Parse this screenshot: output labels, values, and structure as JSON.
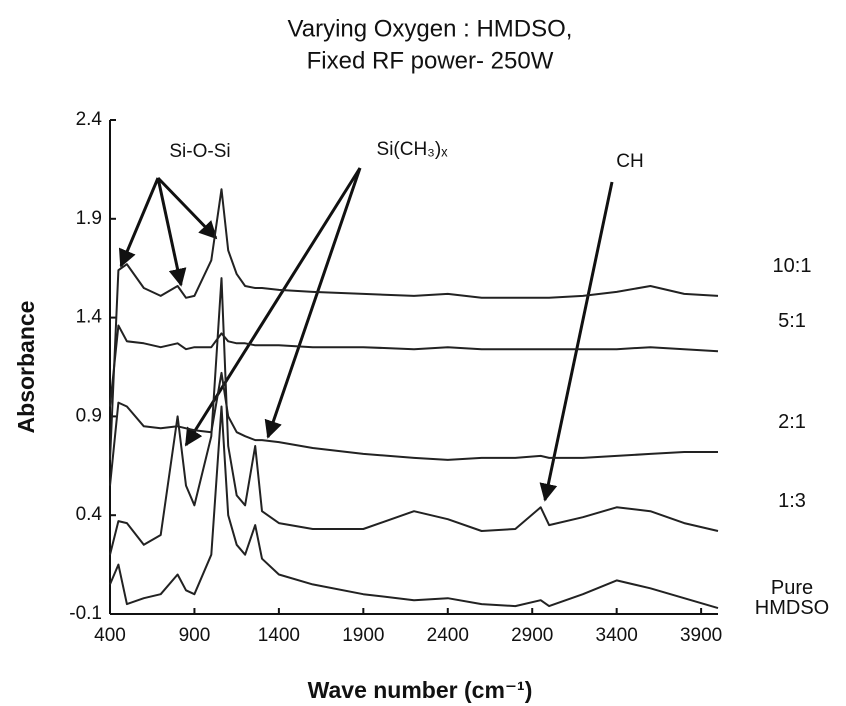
{
  "chart_data": {
    "type": "line",
    "title": "Varying Oxygen : HMDSO,",
    "subtitle": "Fixed RF power- 250W",
    "x_label": "Wave number (cm⁻¹)",
    "y_label": "Absorbance",
    "annotations": [
      "Si-O-Si",
      "Si(CH₃)ₓ",
      "CH"
    ],
    "x": [
      400,
      450,
      500,
      600,
      700,
      800,
      850,
      900,
      1000,
      1060,
      1100,
      1150,
      1200,
      1260,
      1300,
      1400,
      1600,
      1900,
      2200,
      2400,
      2600,
      2800,
      2950,
      3000,
      3200,
      3400,
      3600,
      3800,
      4000
    ],
    "series": [
      {
        "name": "10:1",
        "color": "#222222",
        "values": [
          0.68,
          1.64,
          1.67,
          1.55,
          1.51,
          1.56,
          1.5,
          1.51,
          1.69,
          2.05,
          1.74,
          1.62,
          1.56,
          1.55,
          1.55,
          1.54,
          1.53,
          1.52,
          1.51,
          1.52,
          1.5,
          1.5,
          1.5,
          1.5,
          1.51,
          1.53,
          1.56,
          1.52,
          1.51
        ]
      },
      {
        "name": "5:1",
        "color": "#222222",
        "values": [
          0.95,
          1.36,
          1.28,
          1.27,
          1.25,
          1.27,
          1.24,
          1.25,
          1.25,
          1.32,
          1.28,
          1.27,
          1.27,
          1.26,
          1.26,
          1.26,
          1.25,
          1.25,
          1.24,
          1.25,
          1.24,
          1.24,
          1.24,
          1.24,
          1.24,
          1.24,
          1.25,
          1.24,
          1.23
        ]
      },
      {
        "name": "2:1",
        "color": "#222222",
        "values": [
          0.55,
          0.97,
          0.95,
          0.85,
          0.84,
          0.85,
          0.84,
          0.83,
          0.82,
          1.12,
          0.9,
          0.82,
          0.8,
          0.78,
          0.78,
          0.77,
          0.74,
          0.71,
          0.69,
          0.68,
          0.69,
          0.69,
          0.7,
          0.69,
          0.69,
          0.7,
          0.71,
          0.72,
          0.72
        ]
      },
      {
        "name": "1:3",
        "color": "#222222",
        "values": [
          0.2,
          0.37,
          0.36,
          0.25,
          0.3,
          0.9,
          0.55,
          0.45,
          0.8,
          1.6,
          0.75,
          0.5,
          0.45,
          0.75,
          0.42,
          0.36,
          0.33,
          0.33,
          0.42,
          0.38,
          0.32,
          0.33,
          0.44,
          0.35,
          0.39,
          0.44,
          0.42,
          0.36,
          0.32
        ]
      },
      {
        "name": "Pure HMDSO",
        "color": "#222222",
        "values": [
          0.05,
          0.15,
          -0.05,
          -0.02,
          0.0,
          0.1,
          0.02,
          0.0,
          0.2,
          0.95,
          0.4,
          0.25,
          0.2,
          0.35,
          0.18,
          0.1,
          0.05,
          0.0,
          -0.03,
          -0.02,
          -0.05,
          -0.06,
          -0.03,
          -0.06,
          0.0,
          0.07,
          0.03,
          -0.02,
          -0.07
        ]
      }
    ],
    "xlim": [
      400,
      4000
    ],
    "xticks": [
      400,
      900,
      1400,
      1900,
      2400,
      2900,
      3400,
      3900
    ],
    "ylim": [
      -0.1,
      2.4
    ],
    "yticks": [
      2.4,
      1.9,
      1.4,
      0.9,
      0.4,
      -0.1
    ],
    "grid": false
  }
}
